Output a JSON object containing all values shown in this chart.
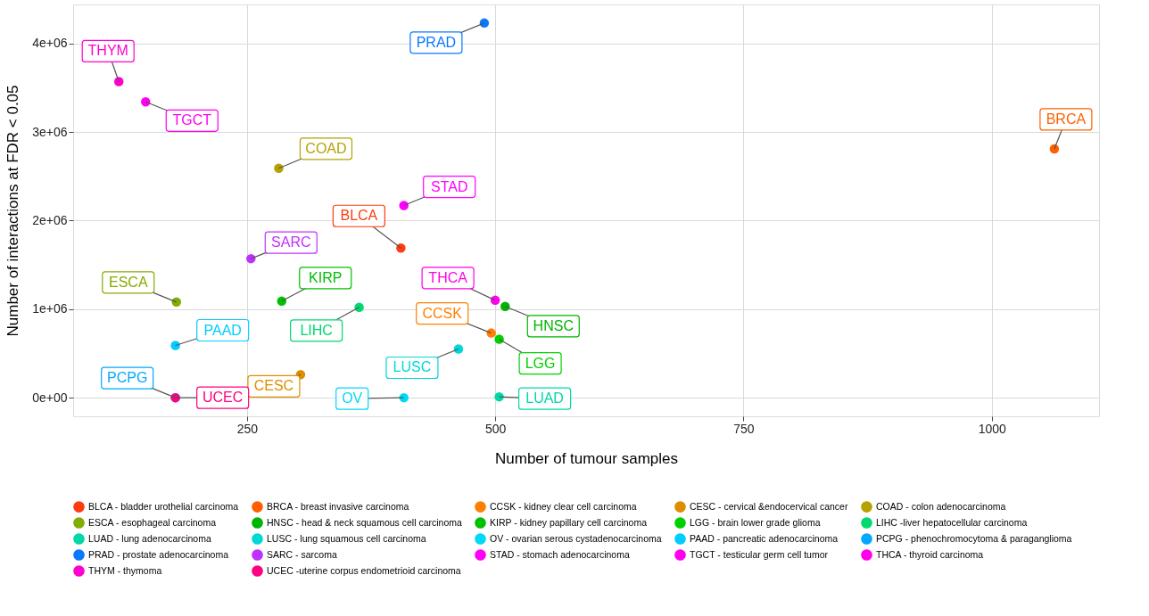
{
  "chart_data": {
    "type": "scatter",
    "xlabel": "Number of tumour samples",
    "ylabel": "Number of interactions at FDR < 0.05",
    "xlim": [
      75,
      1108
    ],
    "ylim": [
      -210000,
      4440000
    ],
    "xticks": [
      250,
      500,
      750,
      1000
    ],
    "yticks": [
      {
        "value": 0,
        "label": "0e+00"
      },
      {
        "value": 1000000,
        "label": "1e+06"
      },
      {
        "value": 2000000,
        "label": "2e+06"
      },
      {
        "value": 3000000,
        "label": "3e+06"
      },
      {
        "value": 4000000,
        "label": "4e+06"
      }
    ],
    "grid": true,
    "legend": "bottom",
    "marker": "circle",
    "series": [
      {
        "name": "BLCA - bladder urothelial carcinoma",
        "color": "#ff3b0f",
        "x": [
          405
        ],
        "values": [
          1690000
        ]
      },
      {
        "name": "BRCA - breast invasive carcinoma",
        "color": "#ff5f00",
        "x": [
          1063
        ],
        "values": [
          2810000
        ]
      },
      {
        "name": "CCSK - kidney clear cell carcinoma",
        "color": "#ff7f00",
        "x": [
          496
        ],
        "values": [
          730000
        ]
      },
      {
        "name": "CESC - cervical &endocervical cancer",
        "color": "#dc8e00",
        "x": [
          304
        ],
        "values": [
          260000
        ]
      },
      {
        "name": "COAD - colon adenocarcinoma",
        "color": "#b5a200",
        "x": [
          282
        ],
        "values": [
          2590000
        ]
      },
      {
        "name": "ESCA - esophageal carcinoma",
        "color": "#82ad00",
        "x": [
          179
        ],
        "values": [
          1080000
        ]
      },
      {
        "name": "HNSC - head & neck squamous cell carcinoma",
        "color": "#00b400",
        "x": [
          510
        ],
        "values": [
          1030000
        ]
      },
      {
        "name": "KIRP - kidney papillary cell carcinoma",
        "color": "#00c000",
        "x": [
          285
        ],
        "values": [
          1090000
        ]
      },
      {
        "name": "LGG - brain lower grade glioma",
        "color": "#00d000",
        "x": [
          504
        ],
        "values": [
          660000
        ]
      },
      {
        "name": "LIHC -liver hepatocellular carcinoma",
        "color": "#00d870",
        "x": [
          363
        ],
        "values": [
          1020000
        ]
      },
      {
        "name": "LUAD - lung adenocarcinoma",
        "color": "#00d8a8",
        "x": [
          504
        ],
        "values": [
          10000
        ]
      },
      {
        "name": "LUSC - lung squamous cell carcinoma",
        "color": "#00d8d8",
        "x": [
          463
        ],
        "values": [
          550000
        ]
      },
      {
        "name": "OV - ovarian serous cystadenocarcinoma",
        "color": "#00d8f8",
        "x": [
          408
        ],
        "values": [
          0
        ]
      },
      {
        "name": "PAAD - pancreatic adenocarcinoma",
        "color": "#00ccff",
        "x": [
          178
        ],
        "values": [
          590000
        ]
      },
      {
        "name": "PCPG - phenochromocytoma & paraganglioma",
        "color": "#00a8ff",
        "x": [
          178
        ],
        "values": [
          0
        ]
      },
      {
        "name": "PRAD - prostate adenocarcinoma",
        "color": "#0a78ff",
        "x": [
          489
        ],
        "values": [
          4230000
        ]
      },
      {
        "name": "SARC - sarcoma",
        "color": "#c030ff",
        "x": [
          254
        ],
        "values": [
          1570000
        ]
      },
      {
        "name": "STAD - stomach adenocarcinoma",
        "color": "#ff00ff",
        "x": [
          408
        ],
        "values": [
          2170000
        ]
      },
      {
        "name": "TGCT - testicular germ cell tumor",
        "color": "#ff00f0",
        "x": [
          148
        ],
        "values": [
          3340000
        ]
      },
      {
        "name": "THCA - thyroid carcinoma",
        "color": "#ff00e8",
        "x": [
          500
        ],
        "values": [
          1100000
        ]
      },
      {
        "name": "THYM - thymoma",
        "color": "#ff00d0",
        "x": [
          121
        ],
        "values": [
          3570000
        ]
      },
      {
        "name": "UCEC -uterine corpus endometrioid carcinoma",
        "color": "#ff0080",
        "x": [
          178
        ],
        "values": [
          0
        ]
      }
    ],
    "annotations": [
      {
        "text": "BLCA",
        "x": 405,
        "y": 1690000
      },
      {
        "text": "BRCA",
        "x": 1063,
        "y": 2810000
      },
      {
        "text": "CCSK",
        "x": 496,
        "y": 730000
      },
      {
        "text": "CESC",
        "x": 304,
        "y": 260000
      },
      {
        "text": "COAD",
        "x": 282,
        "y": 2590000
      },
      {
        "text": "ESCA",
        "x": 179,
        "y": 1080000
      },
      {
        "text": "HNSC",
        "x": 510,
        "y": 1030000
      },
      {
        "text": "KIRP",
        "x": 285,
        "y": 1090000
      },
      {
        "text": "LGG",
        "x": 504,
        "y": 660000
      },
      {
        "text": "LIHC",
        "x": 363,
        "y": 1020000
      },
      {
        "text": "LUAD",
        "x": 504,
        "y": 10000
      },
      {
        "text": "LUSC",
        "x": 463,
        "y": 550000
      },
      {
        "text": "OV",
        "x": 408,
        "y": 0
      },
      {
        "text": "PAAD",
        "x": 178,
        "y": 590000
      },
      {
        "text": "PCPG",
        "x": 178,
        "y": 0
      },
      {
        "text": "PRAD",
        "x": 489,
        "y": 4230000
      },
      {
        "text": "SARC",
        "x": 254,
        "y": 1570000
      },
      {
        "text": "STAD",
        "x": 408,
        "y": 2170000
      },
      {
        "text": "TGCT",
        "x": 148,
        "y": 3340000
      },
      {
        "text": "THCA",
        "x": 500,
        "y": 1100000
      },
      {
        "text": "THYM",
        "x": 121,
        "y": 3570000
      },
      {
        "text": "UCEC",
        "x": 178,
        "y": 0
      }
    ]
  }
}
